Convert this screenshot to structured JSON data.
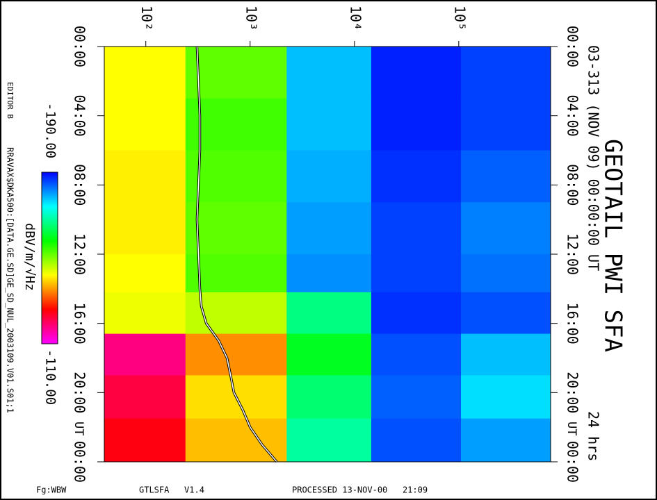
{
  "chart_data": {
    "type": "spectrogram",
    "title": "GEOTAIL PWI SFA",
    "subtitle": "03-313 (NOV 09) 00:00:00 UT",
    "duration": "24 hrs",
    "time_unit": "UT",
    "editor": "EDITOR B",
    "file": "RRAVAX$DKA500:[DATA.GE.SD]GE_SD_NUL_2003109.V01.S01;1",
    "footer": [
      "Fg:WBW",
      "GTLSFA   V1.4",
      "PROCESSED 13-NOV-00   21:09"
    ],
    "colorbar_label": "dBV/m/√Hz",
    "xscale": "log",
    "xlim": [
      40,
      760000
    ],
    "xticks": [
      {
        "value": 100,
        "label": "10²"
      },
      {
        "value": 1000,
        "label": "10³"
      },
      {
        "value": 10000,
        "label": "10⁴"
      },
      {
        "value": 100000,
        "label": "10⁵"
      }
    ],
    "ylim": [
      0,
      24
    ],
    "yticks": [
      {
        "value": 0,
        "label": "00:00"
      },
      {
        "value": 4,
        "label": "04:00"
      },
      {
        "value": 8,
        "label": "08:00"
      },
      {
        "value": 12,
        "label": "12:00"
      },
      {
        "value": 16,
        "label": "16:00"
      },
      {
        "value": 20,
        "label": "20:00"
      },
      {
        "value": 24,
        "label": "00:00"
      }
    ],
    "zlim": [
      -190,
      -110
    ],
    "zticks": [
      {
        "value": -190,
        "label": "-190.00"
      },
      {
        "value": -110,
        "label": "-110.00"
      }
    ],
    "colorscale": [
      "#0000ff",
      "#00ffff",
      "#00ff00",
      "#ffff00",
      "#ff0000",
      "#ff00ff"
    ],
    "freq_bins": [
      40,
      240,
      2240,
      14500,
      105000,
      760000
    ],
    "time_bins": [
      0,
      3,
      6,
      9,
      12,
      14.2,
      16.6,
      19,
      21.5,
      24
    ],
    "values": [
      [
        -142,
        -152,
        -178,
        -188,
        -186
      ],
      [
        -142,
        -154,
        -178,
        -188,
        -186
      ],
      [
        -141,
        -153,
        -179,
        -187,
        -184
      ],
      [
        -141,
        -152,
        -180,
        -186,
        -182
      ],
      [
        -142,
        -153,
        -181,
        -186,
        -183
      ],
      [
        -143,
        -146,
        -166,
        -187,
        -185
      ],
      [
        -118,
        -135,
        -160,
        -185,
        -178
      ],
      [
        -122,
        -140,
        -165,
        -184,
        -176
      ],
      [
        -125,
        -138,
        -168,
        -185,
        -180
      ]
    ],
    "trace": {
      "color": "#ffffff",
      "time": [
        0,
        2,
        4,
        6,
        8,
        10,
        12,
        14,
        15,
        16,
        17,
        18,
        19,
        20,
        21,
        22,
        23,
        24
      ],
      "values": [
        310,
        320,
        330,
        330,
        320,
        310,
        320,
        330,
        340,
        380,
        500,
        600,
        650,
        700,
        850,
        1000,
        1300,
        1800
      ]
    }
  }
}
